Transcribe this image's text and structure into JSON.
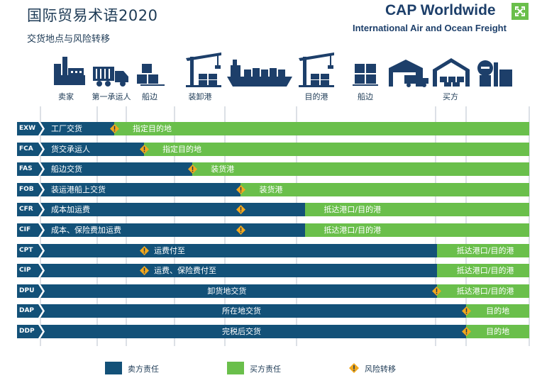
{
  "header": {
    "title": "国际贸易术语2020",
    "subtitle": "交货地点与风险转移",
    "brand_name": "CAP Worldwide",
    "brand_tagline": "International Air and Ocean Freight"
  },
  "colors": {
    "seller": "#135178",
    "buyer": "#6abf4b",
    "risk": "#f2a81d",
    "icons": "#1d3f6a"
  },
  "locations": [
    {
      "label": "卖家",
      "icon": "factory-icon"
    },
    {
      "label": "第一承运人",
      "icon": "truck-icon"
    },
    {
      "label": "船边",
      "icon": "cargo-crates-icon"
    },
    {
      "label": "装卸港",
      "icon": "port-crane-icon"
    },
    {
      "label": "",
      "icon": "container-ship-icon"
    },
    {
      "label": "目的港",
      "icon": "port-crane-icon"
    },
    {
      "label": "船边",
      "icon": "cargo-crates-icon"
    },
    {
      "label": "",
      "icon": "warehouse-truck-icon"
    },
    {
      "label": "买方",
      "icon": "warehouse-icon"
    },
    {
      "label": "",
      "icon": "plant-icon"
    }
  ],
  "terms": [
    {
      "code": "EXW",
      "seller_text": "工厂交货",
      "buyer_text": "指定目的地",
      "split": 0.151,
      "risk": 0.151
    },
    {
      "code": "FCA",
      "seller_text": "货交承运人",
      "buyer_text": "指定目的地",
      "split": 0.212,
      "risk": 0.212
    },
    {
      "code": "FAS",
      "seller_text": "船边交货",
      "buyer_text": "装货港",
      "split": 0.311,
      "risk": 0.311
    },
    {
      "code": "FOB",
      "seller_text": "装运港船上交货",
      "buyer_text": "装货港",
      "split": 0.41,
      "risk": 0.41
    },
    {
      "code": "CFR",
      "seller_text": "成本加运费",
      "buyer_text": "抵达港口/目的港",
      "split": 0.542,
      "risk": 0.41
    },
    {
      "code": "CIF",
      "seller_text": "成本、保险费加运费",
      "buyer_text": "抵达港口/目的港",
      "split": 0.542,
      "risk": 0.41
    },
    {
      "code": "CPT",
      "seller_text": "运费付至",
      "buyer_text": "抵达港口/目的港",
      "split": 0.811,
      "risk": 0.212
    },
    {
      "code": "CIP",
      "seller_text": "运费、保险费付至",
      "buyer_text": "抵达港口/目的港",
      "split": 0.811,
      "risk": 0.212
    },
    {
      "code": "DPU",
      "seller_text": "卸货地交货",
      "buyer_text": "抵达港口/目的港",
      "split": 0.811,
      "risk": 0.811
    },
    {
      "code": "DAP",
      "seller_text": "所在地交货",
      "buyer_text": "目的地",
      "split": 0.871,
      "risk": 0.871
    },
    {
      "code": "DDP",
      "seller_text": "完税后交货",
      "buyer_text": "目的地",
      "split": 0.871,
      "risk": 0.871
    }
  ],
  "legend": {
    "seller": "卖方责任",
    "buyer": "买方责任",
    "risk": "风险转移"
  }
}
